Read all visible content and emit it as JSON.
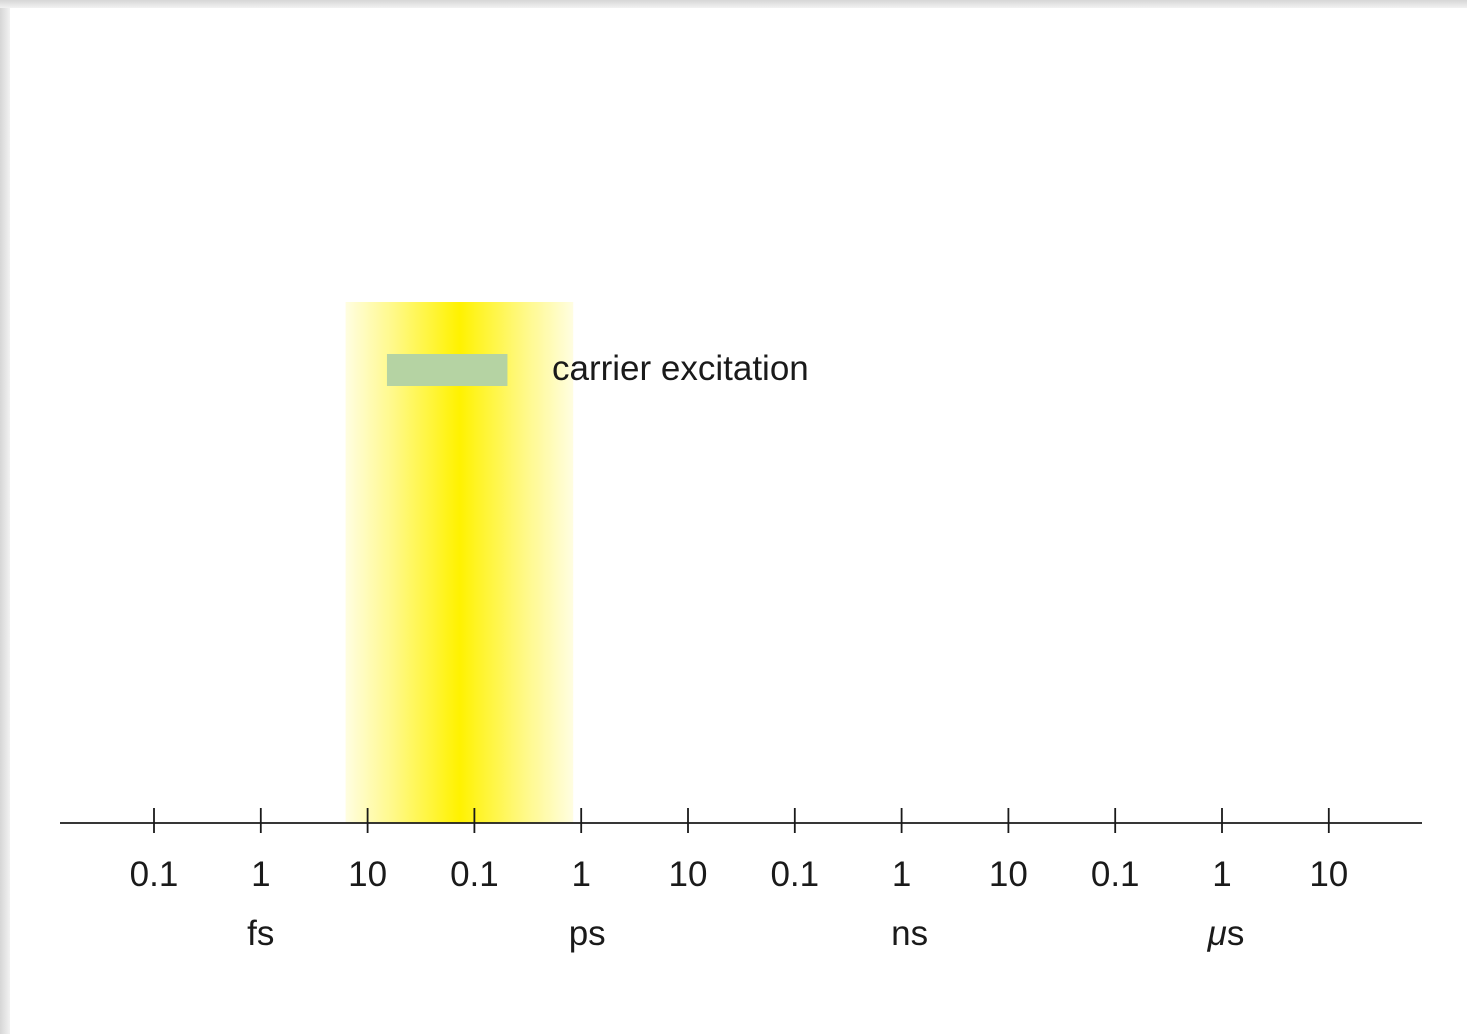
{
  "axis": {
    "ticks": [
      {
        "label": "0.1"
      },
      {
        "label": "1"
      },
      {
        "label": "10"
      },
      {
        "label": "0.1"
      },
      {
        "label": "1"
      },
      {
        "label": "10"
      },
      {
        "label": "0.1"
      },
      {
        "label": "1"
      },
      {
        "label": "10"
      },
      {
        "label": "0.1"
      },
      {
        "label": "1"
      },
      {
        "label": "10"
      }
    ],
    "units": [
      {
        "label": "fs",
        "tick_index": 1
      },
      {
        "label": "ps",
        "tick_index": 4
      },
      {
        "label": "ns",
        "tick_index": 7
      },
      {
        "label": "μs",
        "tick_index": 10
      }
    ]
  },
  "highlight": {
    "start_tick": 2,
    "center_tick": 3,
    "end_tick": 4,
    "color": "#fff200"
  },
  "legend": {
    "swatch_color": "#b5d3a3",
    "label": "carrier excitation",
    "start_tick": 2.2,
    "end_tick": 3.3
  },
  "colors": {
    "axis": "#1a1a1a",
    "text": "#1a1a1a"
  }
}
